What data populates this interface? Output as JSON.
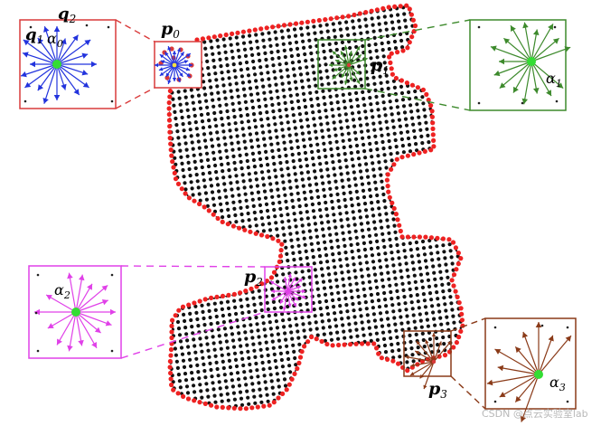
{
  "diagram": {
    "labels": {
      "p0": {
        "main": "p",
        "sub": "0"
      },
      "p1": {
        "main": "p",
        "sub": "1"
      },
      "p2": {
        "main": "p",
        "sub": "2"
      },
      "p3": {
        "main": "p",
        "sub": "3"
      },
      "q1": {
        "main": "q",
        "sub": "1"
      },
      "q2": {
        "main": "q",
        "sub": "2"
      },
      "alpha0": {
        "main": "α",
        "sub": "0"
      },
      "alpha1": {
        "main": "α",
        "sub": "1"
      },
      "alpha2": {
        "main": "α",
        "sub": "2"
      },
      "alpha3": {
        "main": "α",
        "sub": "3"
      }
    },
    "colors": {
      "interior": "#111111",
      "boundary": "#ee2222",
      "p0": "#d93a3a",
      "p0_arrows": "#2233dd",
      "p1": "#3d8a2c",
      "p2": "#e040e8",
      "p3": "#8a3a18",
      "center": "#33dd33"
    }
  },
  "watermark": "CSDN @点云实验室lab"
}
